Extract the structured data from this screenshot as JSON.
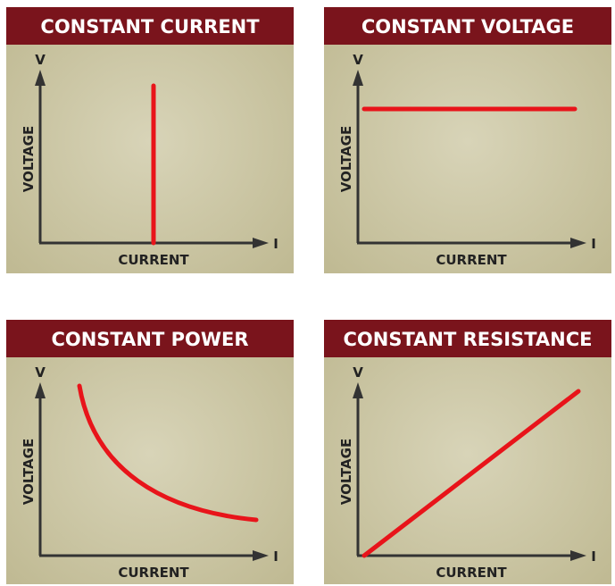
{
  "panels": [
    {
      "title": "CONSTANT CURRENT",
      "y_symbol": "V",
      "y_label": "VOLTAGE",
      "x_label": "CURRENT",
      "x_symbol": "I"
    },
    {
      "title": "CONSTANT VOLTAGE",
      "y_symbol": "V",
      "y_label": "VOLTAGE",
      "x_label": "CURRENT",
      "x_symbol": "I"
    },
    {
      "title": "CONSTANT POWER",
      "y_symbol": "V",
      "y_label": "VOLTAGE",
      "x_label": "CURRENT",
      "x_symbol": "I"
    },
    {
      "title": "CONSTANT RESISTANCE",
      "y_symbol": "V",
      "y_label": "VOLTAGE",
      "x_label": "CURRENT",
      "x_symbol": "I"
    }
  ]
}
